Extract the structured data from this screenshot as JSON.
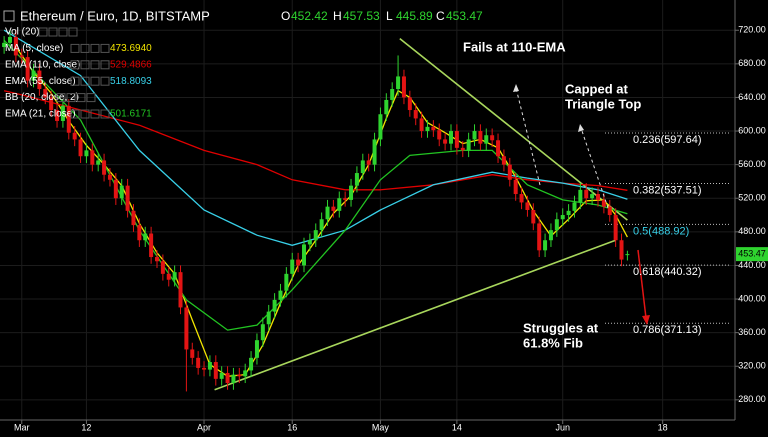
{
  "chart_data": {
    "type": "candlestick",
    "title": "Ethereum / Euro, 1D, BITSTAMP",
    "ohlc_labels": [
      "O",
      "H",
      "L",
      "C"
    ],
    "up_color": "#2fd42f",
    "down_color": "#e31414",
    "x": [
      -3,
      -2,
      -1,
      0,
      1,
      2,
      3,
      4,
      5,
      6,
      7,
      8,
      9,
      10,
      11,
      12,
      13,
      14,
      15,
      16,
      17,
      18,
      19,
      20,
      21,
      22,
      23,
      24,
      25,
      26,
      27,
      28,
      29,
      30,
      31,
      32,
      33,
      34,
      35,
      36,
      37,
      38,
      39,
      40,
      41,
      42,
      43,
      44,
      45,
      46,
      47,
      48,
      49,
      50,
      51,
      52,
      53,
      54,
      55,
      56,
      57,
      58,
      59,
      60,
      61,
      62,
      63,
      64,
      65,
      66,
      67,
      68,
      69,
      70,
      71,
      72,
      73,
      74,
      75,
      76,
      77,
      78,
      79,
      80,
      81,
      82,
      83,
      84,
      85,
      86,
      87,
      88,
      89,
      90,
      91,
      92,
      93,
      94,
      95,
      96,
      97,
      98,
      99,
      100,
      101,
      102,
      103
    ],
    "open": [
      700,
      705,
      712,
      690,
      688,
      660,
      672,
      650,
      640,
      625,
      612,
      630,
      598,
      590,
      570,
      577,
      560,
      565,
      548,
      542,
      520,
      535,
      505,
      488,
      470,
      478,
      450,
      445,
      430,
      423,
      432,
      390,
      340,
      330,
      318,
      316,
      325,
      305,
      312,
      300,
      310,
      308,
      315,
      330,
      351,
      370,
      385,
      399,
      410,
      430,
      447,
      440,
      465,
      470,
      482,
      495,
      510,
      505,
      520,
      518,
      535,
      550,
      565,
      560,
      590,
      620,
      637,
      650,
      665,
      640,
      625,
      615,
      600,
      605,
      601,
      590,
      585,
      600,
      580,
      577,
      590,
      600,
      585,
      595,
      589,
      570,
      560,
      542,
      525,
      515,
      506,
      490,
      458,
      470,
      482,
      495,
      500,
      505,
      515,
      530,
      520,
      525,
      518,
      510,
      500,
      470,
      452.42
    ],
    "high": [
      713,
      720,
      720,
      698,
      696,
      680,
      680,
      658,
      648,
      633,
      638,
      638,
      606,
      598,
      585,
      585,
      573,
      573,
      556,
      550,
      543,
      543,
      513,
      496,
      486,
      486,
      458,
      453,
      438,
      440,
      440,
      398,
      348,
      338,
      326,
      333,
      333,
      320,
      320,
      318,
      318,
      323,
      338,
      359,
      378,
      393,
      407,
      418,
      438,
      455,
      455,
      473,
      478,
      490,
      503,
      518,
      518,
      528,
      528,
      543,
      558,
      573,
      573,
      598,
      628,
      645,
      658,
      690,
      673,
      648,
      633,
      623,
      613,
      613,
      609,
      598,
      608,
      608,
      588,
      598,
      608,
      608,
      603,
      603,
      597,
      578,
      568,
      550,
      533,
      523,
      514,
      498,
      478,
      490,
      503,
      508,
      513,
      523,
      538,
      538,
      533,
      533,
      526,
      518,
      508,
      478,
      457.53
    ],
    "low": [
      692,
      697,
      682,
      680,
      652,
      652,
      642,
      632,
      617,
      604,
      604,
      590,
      582,
      562,
      562,
      552,
      552,
      540,
      534,
      512,
      512,
      497,
      480,
      462,
      462,
      442,
      437,
      422,
      415,
      415,
      382,
      290,
      322,
      310,
      308,
      308,
      297,
      297,
      292,
      292,
      300,
      300,
      307,
      322,
      343,
      362,
      377,
      391,
      402,
      422,
      432,
      432,
      457,
      462,
      474,
      487,
      497,
      497,
      510,
      510,
      527,
      542,
      552,
      552,
      582,
      612,
      629,
      642,
      632,
      617,
      607,
      592,
      592,
      593,
      582,
      577,
      577,
      572,
      569,
      569,
      582,
      577,
      577,
      581,
      562,
      552,
      534,
      517,
      507,
      498,
      482,
      450,
      450,
      462,
      474,
      487,
      492,
      497,
      507,
      512,
      512,
      510,
      502,
      492,
      462,
      439,
      445.89
    ],
    "close": [
      705,
      712,
      690,
      688,
      660,
      672,
      650,
      640,
      625,
      612,
      630,
      598,
      590,
      570,
      577,
      560,
      565,
      548,
      542,
      520,
      535,
      505,
      488,
      470,
      478,
      450,
      445,
      430,
      423,
      432,
      390,
      340,
      330,
      318,
      316,
      325,
      305,
      312,
      300,
      310,
      308,
      315,
      330,
      351,
      370,
      385,
      399,
      410,
      430,
      447,
      440,
      465,
      470,
      482,
      495,
      510,
      505,
      520,
      518,
      535,
      550,
      565,
      560,
      590,
      620,
      637,
      650,
      665,
      640,
      625,
      615,
      600,
      605,
      601,
      590,
      585,
      600,
      580,
      577,
      590,
      600,
      585,
      595,
      589,
      570,
      560,
      542,
      525,
      515,
      506,
      490,
      458,
      470,
      482,
      495,
      500,
      505,
      515,
      530,
      520,
      525,
      518,
      510,
      500,
      470,
      447,
      453.47
    ],
    "indicators": [
      {
        "name": "Vol (20)"
      },
      {
        "name": "MA (5, close)",
        "color": "#f2e400",
        "value_label": "473.6940",
        "x": [
          -1,
          2,
          5,
          8,
          11,
          14,
          17,
          20,
          23,
          26,
          29,
          32,
          35,
          38,
          41,
          44,
          47,
          50,
          53,
          56,
          59,
          62,
          64,
          66,
          69,
          72,
          75,
          78,
          81,
          84,
          87,
          90,
          93,
          96,
          99,
          101,
          103
        ],
        "values": [
          700,
          670,
          645,
          612,
          583,
          560,
          535,
          490,
          455,
          430,
          375,
          322,
          308,
          310,
          345,
          395,
          440,
          470,
          502,
          523,
          560,
          615,
          648,
          640,
          610,
          598,
          585,
          590,
          580,
          545,
          505,
          475,
          495,
          517,
          518,
          500,
          473.694
        ]
      },
      {
        "name": "EMA (110, close)",
        "color": "#e00000",
        "value_label": "529.4866",
        "x": [
          -3,
          0,
          10,
          20,
          31,
          40,
          46,
          55,
          61,
          70,
          80,
          86,
          92,
          98,
          103
        ],
        "values": [
          648,
          643,
          625,
          607,
          577,
          560,
          542,
          530,
          530,
          536,
          548,
          542,
          538,
          535,
          529.4866
        ]
      },
      {
        "name": "EMA (55, close)",
        "color": "#38d0e8",
        "value_label": "518.8093",
        "x": [
          -3,
          10,
          20,
          31,
          40,
          46,
          55,
          61,
          70,
          80,
          86,
          92,
          98,
          103
        ],
        "values": [
          720,
          666,
          577,
          506,
          476,
          464,
          482,
          506,
          536,
          551,
          544,
          538,
          530,
          518.8093
        ]
      },
      {
        "name": "BB (20, close, 2)"
      },
      {
        "name": "EMA (21, close)",
        "color": "#22c422",
        "value_label": "501.6171",
        "x": [
          -3,
          10,
          20,
          28,
          35,
          40,
          46,
          55,
          61,
          66,
          75,
          80,
          86,
          92,
          98,
          103
        ],
        "values": [
          708,
          613,
          482,
          399,
          363,
          369,
          411,
          482,
          542,
          571,
          577,
          577,
          536,
          518,
          512,
          501.6171
        ]
      }
    ],
    "trendlines": [
      {
        "color": "#a8d65c",
        "x": [
          64.3,
          103
        ],
        "values": [
          710,
          494
        ]
      },
      {
        "color": "#a8d65c",
        "x": [
          32.8,
          101
        ],
        "values": [
          292,
          470
        ]
      }
    ],
    "fib_levels": [
      {
        "value": 597.64,
        "label": "0.236(597.64)",
        "color": "#ffffff"
      },
      {
        "value": 537.51,
        "label": "0.382(537.51)",
        "color": "#ffffff"
      },
      {
        "value": 488.92,
        "label": "0.5(488.92)",
        "color": "#38d0e8"
      },
      {
        "value": 440.32,
        "label": "0.618(440.32)",
        "color": "#ffffff"
      },
      {
        "value": 371.13,
        "label": "0.786(371.13)",
        "color": "#ffffff"
      }
    ],
    "annotations": [
      [
        "Fails at 110-EMA"
      ],
      [
        "Capped at",
        "Triangle Top"
      ],
      [
        "Struggles at",
        "61.8% Fib"
      ]
    ],
    "xlim": [
      -3.7,
      121.3
    ],
    "xticks": [
      {
        "value": 0,
        "label": "Mar"
      },
      {
        "value": 11,
        "label": "12"
      },
      {
        "value": 31,
        "label": "Apr"
      },
      {
        "value": 46,
        "label": "16"
      },
      {
        "value": 61,
        "label": "May"
      },
      {
        "value": 74,
        "label": "14"
      },
      {
        "value": 92,
        "label": "Jun"
      },
      {
        "value": 109,
        "label": "18"
      }
    ],
    "ylim": [
      256,
      756
    ],
    "yticks": [
      {
        "value": 280,
        "label": "280.00"
      },
      {
        "value": 320,
        "label": "320.00"
      },
      {
        "value": 360,
        "label": "360.00"
      },
      {
        "value": 400,
        "label": "400.00"
      },
      {
        "value": 440,
        "label": "440.00"
      },
      {
        "value": 480,
        "label": "480.00"
      },
      {
        "value": 520,
        "label": "520.00"
      },
      {
        "value": 560,
        "label": "560.00"
      },
      {
        "value": 600,
        "label": "600.00"
      },
      {
        "value": 640,
        "label": "640.00"
      },
      {
        "value": 680,
        "label": "680.00"
      },
      {
        "value": 720,
        "label": "720.00"
      }
    ],
    "grid": true
  }
}
